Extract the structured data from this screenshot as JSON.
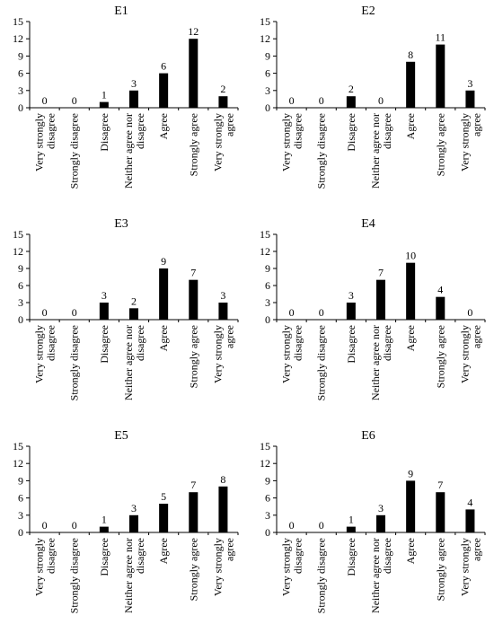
{
  "chart_data": [
    {
      "type": "bar",
      "title": "E1",
      "categories": [
        "Very strongly disagree",
        "Strongly disagree",
        "Disagree",
        "Neither agree nor disagree",
        "Agree",
        "Strongly agree",
        "Very strongly agree"
      ],
      "values": [
        0,
        0,
        1,
        3,
        6,
        12,
        2
      ],
      "ylim": [
        0,
        15
      ],
      "yticks": [
        0,
        3,
        6,
        9,
        12,
        15
      ],
      "bar_color": "#000000"
    },
    {
      "type": "bar",
      "title": "E2",
      "categories": [
        "Very strongly disagree",
        "Strongly disagree",
        "Disagree",
        "Neither agree nor disagree",
        "Agree",
        "Strongly agree",
        "Very strongly agree"
      ],
      "values": [
        0,
        0,
        2,
        0,
        8,
        11,
        3
      ],
      "ylim": [
        0,
        15
      ],
      "yticks": [
        0,
        3,
        6,
        9,
        12,
        15
      ],
      "bar_color": "#000000"
    },
    {
      "type": "bar",
      "title": "E3",
      "categories": [
        "Very strongly disagree",
        "Strongly disagree",
        "Disagree",
        "Neither agree nor disagree",
        "Agree",
        "Strongly agree",
        "Very strongly agree"
      ],
      "values": [
        0,
        0,
        3,
        2,
        9,
        7,
        3
      ],
      "ylim": [
        0,
        15
      ],
      "yticks": [
        0,
        3,
        6,
        9,
        12,
        15
      ],
      "bar_color": "#000000"
    },
    {
      "type": "bar",
      "title": "E4",
      "categories": [
        "Very strongly disagree",
        "Strongly disagree",
        "Disagree",
        "Neither agree nor disagree",
        "Agree",
        "Strongly agree",
        "Very strongly agree"
      ],
      "values": [
        0,
        0,
        3,
        7,
        10,
        4,
        0
      ],
      "ylim": [
        0,
        15
      ],
      "yticks": [
        0,
        3,
        6,
        9,
        12,
        15
      ],
      "bar_color": "#000000"
    },
    {
      "type": "bar",
      "title": "E5",
      "categories": [
        "Very strongly disagree",
        "Strongly disagree",
        "Disagree",
        "Neither agree nor disagree",
        "Agree",
        "Strongly agree",
        "Very strongly agree"
      ],
      "values": [
        0,
        0,
        1,
        3,
        5,
        7,
        8
      ],
      "ylim": [
        0,
        15
      ],
      "yticks": [
        0,
        3,
        6,
        9,
        12,
        15
      ],
      "bar_color": "#000000"
    },
    {
      "type": "bar",
      "title": "E6",
      "categories": [
        "Very strongly disagree",
        "Strongly disagree",
        "Disagree",
        "Neither agree nor disagree",
        "Agree",
        "Strongly agree",
        "Very strongly agree"
      ],
      "values": [
        0,
        0,
        1,
        3,
        9,
        7,
        4
      ],
      "ylim": [
        0,
        15
      ],
      "yticks": [
        0,
        3,
        6,
        9,
        12,
        15
      ],
      "bar_color": "#000000"
    }
  ]
}
